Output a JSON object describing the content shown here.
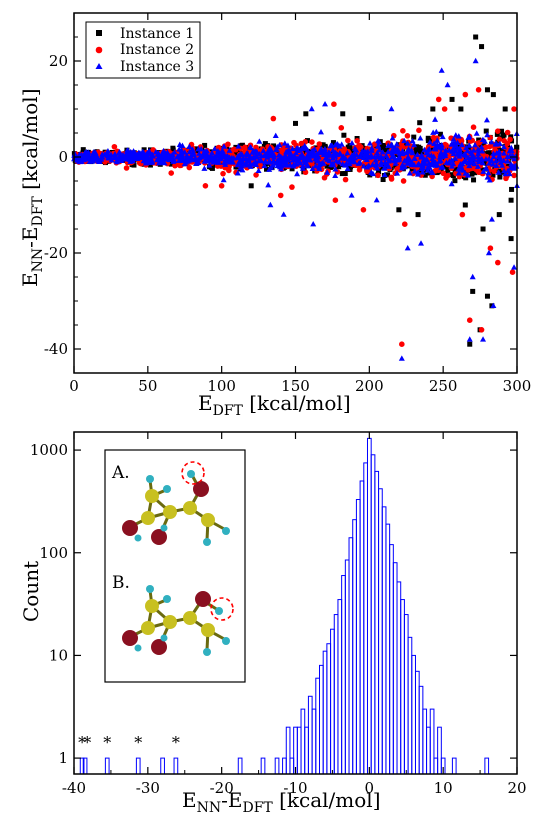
{
  "chart_data": [
    {
      "type": "scatter",
      "xlabel_main": "E",
      "xlabel_sub": "DFT",
      "xlabel_unit": " [kcal/mol]",
      "ylabel_parts": [
        "E",
        "NN",
        "-E",
        "DFT",
        " [kcal/mol]"
      ],
      "xlim": [
        0,
        300
      ],
      "ylim": [
        -45,
        30
      ],
      "x_ticks": [
        0,
        50,
        100,
        150,
        200,
        250,
        300
      ],
      "y_ticks": [
        -40,
        -20,
        0,
        20
      ],
      "legend_position": "top-left",
      "series": [
        {
          "name": "Instance 1",
          "marker": "square",
          "color": "#000000",
          "outliers": [
            [
              272,
              25
            ],
            [
              276,
              23
            ],
            [
              275,
              -36
            ],
            [
              268,
              -39
            ],
            [
              283,
              -31
            ],
            [
              280,
              -29
            ],
            [
              270,
              -28
            ],
            [
              296,
              -17
            ],
            [
              288,
              -12
            ],
            [
              256,
              12
            ],
            [
              262,
              10
            ],
            [
              280,
              14
            ],
            [
              284,
              13
            ],
            [
              292,
              10
            ],
            [
              243,
              10
            ],
            [
              200,
              8
            ],
            [
              182,
              9
            ],
            [
              157,
              9
            ],
            [
              220,
              -11
            ],
            [
              233,
              -12
            ],
            [
              277,
              -15
            ],
            [
              265,
              -10
            ],
            [
              296,
              -9
            ],
            [
              150,
              7
            ],
            [
              120,
              -6
            ]
          ]
        },
        {
          "name": "Instance 2",
          "marker": "circle",
          "color": "#ff0000",
          "outliers": [
            [
              222,
              -39
            ],
            [
              268,
              -34
            ],
            [
              276,
              -36
            ],
            [
              287,
              -22
            ],
            [
              297,
              -24
            ],
            [
              282,
              -19
            ],
            [
              274,
              14
            ],
            [
              247,
              12
            ],
            [
              251,
              10
            ],
            [
              298,
              10
            ],
            [
              265,
              13
            ],
            [
              224,
              -14
            ],
            [
              263,
              -12
            ],
            [
              196,
              -11
            ],
            [
              177,
              -9
            ],
            [
              140,
              -8
            ],
            [
              135,
              8
            ],
            [
              176,
              11
            ],
            [
              100,
              -6
            ],
            [
              89,
              -6
            ]
          ]
        },
        {
          "name": "Instance 3",
          "marker": "triangle",
          "color": "#0000ff",
          "outliers": [
            [
              222,
              -42
            ],
            [
              268,
              -38
            ],
            [
              277,
              -38
            ],
            [
              284,
              -31
            ],
            [
              281,
              -20
            ],
            [
              270,
              -25
            ],
            [
              298,
              -23
            ],
            [
              253,
              15
            ],
            [
              249,
              18
            ],
            [
              272,
              20
            ],
            [
              170,
              11
            ],
            [
              161,
              10
            ],
            [
              215,
              10
            ],
            [
              162,
              -14
            ],
            [
              235,
              -18
            ],
            [
              283,
              -13
            ],
            [
              205,
              -9
            ],
            [
              188,
              -8
            ],
            [
              142,
              -12
            ],
            [
              133,
              -10
            ],
            [
              226,
              -19
            ],
            [
              300,
              -6
            ]
          ]
        }
      ]
    },
    {
      "type": "bar",
      "xlabel_parts": [
        "E",
        "NN",
        "-E",
        "DFT",
        " [kcal/mol]"
      ],
      "ylabel": "Count",
      "y_scale": "log",
      "xlim": [
        -40,
        20
      ],
      "ylim": [
        0.7,
        1500
      ],
      "x_ticks": [
        -40,
        -30,
        -20,
        -10,
        0,
        10,
        20
      ],
      "y_ticks": [
        1,
        10,
        100,
        1000
      ],
      "bin_width": 0.5,
      "bins": [
        [
          -38.9,
          1
        ],
        [
          -38.5,
          1
        ],
        [
          -35.5,
          1
        ],
        [
          -31.3,
          1
        ],
        [
          -28.0,
          1
        ],
        [
          -26.2,
          1
        ],
        [
          -17.5,
          1
        ],
        [
          -14.4,
          1
        ],
        [
          -12.5,
          1
        ],
        [
          -11.5,
          1
        ],
        [
          -11.0,
          2
        ],
        [
          -10.5,
          1
        ],
        [
          -10.0,
          2
        ],
        [
          -9.5,
          2
        ],
        [
          -9.0,
          3
        ],
        [
          -8.5,
          2
        ],
        [
          -8.0,
          4
        ],
        [
          -7.5,
          3
        ],
        [
          -7.0,
          6
        ],
        [
          -6.5,
          8
        ],
        [
          -6.0,
          11
        ],
        [
          -5.5,
          13
        ],
        [
          -5.0,
          18
        ],
        [
          -4.5,
          25
        ],
        [
          -4.0,
          35
        ],
        [
          -3.5,
          60
        ],
        [
          -3.0,
          85
        ],
        [
          -2.5,
          140
        ],
        [
          -2.0,
          210
        ],
        [
          -1.5,
          330
        ],
        [
          -1.0,
          500
        ],
        [
          -0.5,
          750
        ],
        [
          0.0,
          1300
        ],
        [
          0.5,
          900
        ],
        [
          1.0,
          620
        ],
        [
          1.5,
          420
        ],
        [
          2.0,
          280
        ],
        [
          2.5,
          190
        ],
        [
          3.0,
          120
        ],
        [
          3.5,
          80
        ],
        [
          4.0,
          52
        ],
        [
          4.5,
          35
        ],
        [
          5.0,
          25
        ],
        [
          5.5,
          15
        ],
        [
          6.0,
          10
        ],
        [
          6.5,
          7
        ],
        [
          7.0,
          5
        ],
        [
          7.5,
          3
        ],
        [
          8.0,
          2
        ],
        [
          8.5,
          3
        ],
        [
          9.0,
          1
        ],
        [
          9.5,
          2
        ],
        [
          10.0,
          1
        ],
        [
          11.5,
          1
        ],
        [
          15.9,
          1
        ]
      ],
      "asterisks": [
        {
          "x": -38.9,
          "text": "*"
        },
        {
          "x": -38.2,
          "text": "*"
        },
        {
          "x": -35.5,
          "text": "*"
        },
        {
          "x": -31.3,
          "text": "*"
        },
        {
          "x": -26.2,
          "text": "*"
        }
      ],
      "inset": {
        "labels": [
          "A.",
          "B."
        ],
        "atom_colors": {
          "carbon": "#c8c020",
          "oxygen": "#8a1020",
          "hydrogen": "#30b0c0",
          "highlight": "#ff0000"
        }
      }
    }
  ]
}
